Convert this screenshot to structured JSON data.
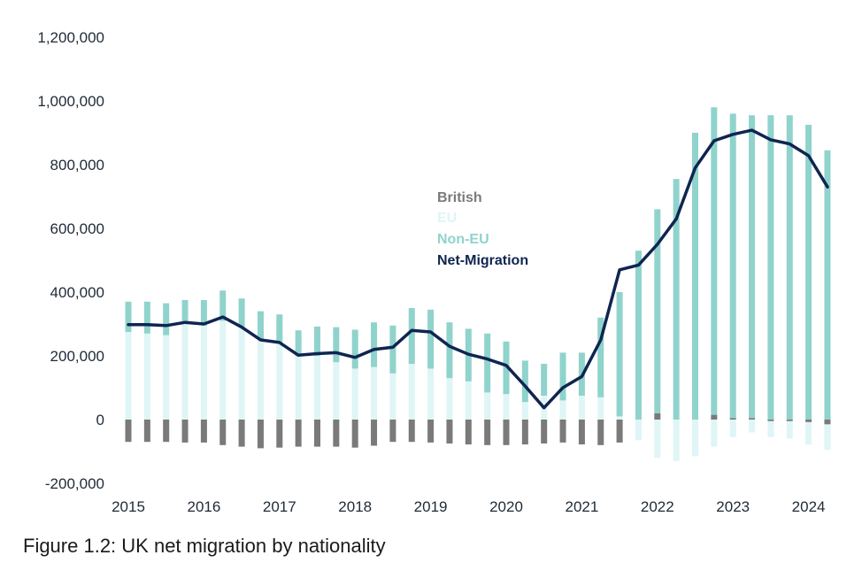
{
  "caption": "Figure 1.2: UK net migration by nationality",
  "colors": {
    "british": "#7a7a7a",
    "eu": "#dff5f6",
    "non_eu": "#8fd3cc",
    "net": "#0f2550",
    "axis_text": "#1f2a36"
  },
  "chart_data": {
    "type": "bar",
    "stacked": true,
    "title": "",
    "xlabel": "",
    "ylabel": "",
    "ylim": [
      -200000,
      1200000
    ],
    "yticks": [
      1200000,
      1000000,
      800000,
      600000,
      400000,
      200000,
      0,
      -200000
    ],
    "ytick_labels": [
      "1,200,000",
      "1,000,000",
      "800,000",
      "600,000",
      "400,000",
      "200,000",
      "0",
      "-200,000"
    ],
    "xtick_labels": [
      "2015",
      "2016",
      "2017",
      "2018",
      "2019",
      "2020",
      "2021",
      "2022",
      "2023",
      "2024"
    ],
    "legend": {
      "placement": "center",
      "entries": [
        "British",
        "EU",
        "Non-EU",
        "Net-Migration"
      ]
    },
    "grid": false,
    "categories": [
      "2015 Q1",
      "2015 Q2",
      "2015 Q3",
      "2015 Q4",
      "2016 Q1",
      "2016 Q2",
      "2016 Q3",
      "2016 Q4",
      "2017 Q1",
      "2017 Q2",
      "2017 Q3",
      "2017 Q4",
      "2018 Q1",
      "2018 Q2",
      "2018 Q3",
      "2018 Q4",
      "2019 Q1",
      "2019 Q2",
      "2019 Q3",
      "2019 Q4",
      "2020 Q1",
      "2020 Q2",
      "2020 Q3",
      "2020 Q4",
      "2021 Q1",
      "2021 Q2",
      "2021 Q3",
      "2021 Q4",
      "2022 Q1",
      "2022 Q2",
      "2022 Q3",
      "2022 Q4",
      "2023 Q1",
      "2023 Q2",
      "2023 Q3",
      "2023 Q4",
      "2024 Q1",
      "2024 Q2"
    ],
    "series": [
      {
        "name": "British",
        "kind": "bar",
        "values": [
          -70000,
          -70000,
          -70000,
          -72000,
          -72000,
          -80000,
          -85000,
          -90000,
          -88000,
          -85000,
          -85000,
          -85000,
          -88000,
          -82000,
          -70000,
          -70000,
          -72000,
          -75000,
          -78000,
          -80000,
          -80000,
          -78000,
          -75000,
          -72000,
          -78000,
          -80000,
          -72000,
          0,
          20000,
          0,
          0,
          15000,
          5000,
          5000,
          -5000,
          -5000,
          -8000,
          -15000
        ]
      },
      {
        "name": "EU",
        "kind": "bar",
        "values": [
          275000,
          270000,
          265000,
          300000,
          295000,
          310000,
          290000,
          250000,
          240000,
          200000,
          200000,
          180000,
          160000,
          165000,
          145000,
          175000,
          160000,
          130000,
          120000,
          85000,
          80000,
          55000,
          75000,
          60000,
          75000,
          70000,
          10000,
          -65000,
          -120000,
          -130000,
          -115000,
          -85000,
          -55000,
          -40000,
          -50000,
          -55000,
          -70000,
          -80000
        ]
      },
      {
        "name": "Non-EU",
        "kind": "bar",
        "values": [
          95000,
          100000,
          100000,
          75000,
          80000,
          95000,
          90000,
          90000,
          90000,
          80000,
          92000,
          110000,
          122000,
          140000,
          150000,
          175000,
          185000,
          175000,
          165000,
          185000,
          165000,
          130000,
          100000,
          150000,
          135000,
          250000,
          390000,
          530000,
          640000,
          755000,
          900000,
          965000,
          955000,
          950000,
          955000,
          955000,
          925000,
          845000
        ]
      },
      {
        "name": "Net-Migration",
        "kind": "line",
        "values": [
          298000,
          298000,
          295000,
          305000,
          300000,
          322000,
          290000,
          250000,
          242000,
          202000,
          207000,
          210000,
          195000,
          220000,
          227000,
          280000,
          275000,
          230000,
          205000,
          190000,
          170000,
          105000,
          37000,
          100000,
          135000,
          250000,
          470000,
          485000,
          550000,
          630000,
          790000,
          875000,
          895000,
          908000,
          878000,
          865000,
          828000,
          730000
        ]
      }
    ]
  }
}
